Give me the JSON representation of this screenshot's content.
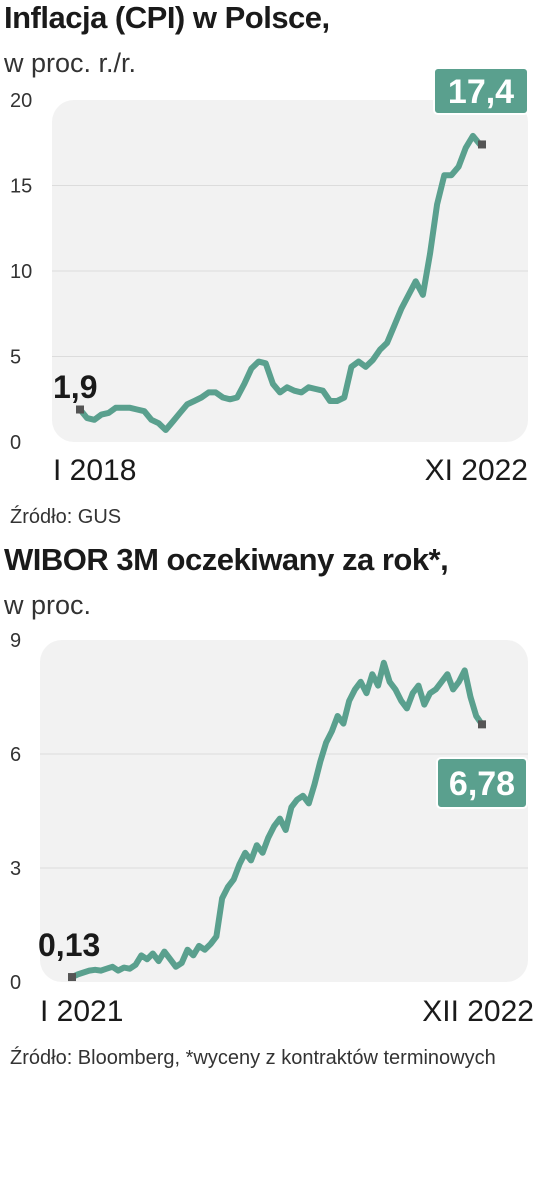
{
  "chart_data": [
    {
      "type": "line",
      "title": "Inflacja (CPI) w Polsce,",
      "subtitle": "w proc. r./r.",
      "source": "Źródło: GUS",
      "x_start_label": "I 2018",
      "x_end_label": "XI 2022",
      "ylim": [
        0,
        20
      ],
      "yticks": [
        "0",
        "5",
        "10",
        "15",
        "20"
      ],
      "start_value_label": "1,9",
      "end_value_label": "17,4",
      "grid": true,
      "colors": {
        "line": "#5aa08e",
        "badge": "#5aa08e",
        "panel": "#f2f2f2",
        "marker": "#555555"
      },
      "series": [
        {
          "values": [
            1.9,
            1.4,
            1.3,
            1.6,
            1.7,
            2.0,
            2.0,
            2.0,
            1.9,
            1.8,
            1.3,
            1.1,
            0.7,
            1.2,
            1.7,
            2.2,
            2.4,
            2.6,
            2.9,
            2.9,
            2.6,
            2.5,
            2.6,
            3.4,
            4.3,
            4.7,
            4.6,
            3.4,
            2.9,
            3.2,
            3.0,
            2.9,
            3.2,
            3.1,
            3.0,
            2.4,
            2.4,
            2.6,
            4.4,
            4.7,
            4.4,
            4.8,
            5.4,
            5.8,
            6.8,
            7.8,
            8.6,
            9.4,
            8.6,
            11.0,
            13.9,
            15.6,
            15.6,
            16.1,
            17.2,
            17.9,
            17.4
          ]
        }
      ]
    },
    {
      "type": "line",
      "title": "WIBOR 3M oczekiwany za rok*,",
      "subtitle": "w proc.",
      "source": "Źródło: Bloomberg, *wyceny z kontraktów terminowych",
      "x_start_label": "I 2021",
      "x_end_label": "XII 2022",
      "ylim": [
        0,
        9
      ],
      "yticks": [
        "0",
        "3",
        "6",
        "9"
      ],
      "start_value_label": "0,13",
      "end_value_label": "6,78",
      "grid": true,
      "colors": {
        "line": "#5aa08e",
        "badge": "#5aa08e",
        "panel": "#f2f2f2",
        "marker": "#555555"
      },
      "series": [
        {
          "values": [
            0.13,
            0.2,
            0.25,
            0.3,
            0.32,
            0.3,
            0.35,
            0.4,
            0.3,
            0.38,
            0.35,
            0.45,
            0.7,
            0.6,
            0.75,
            0.55,
            0.8,
            0.6,
            0.4,
            0.5,
            0.85,
            0.7,
            0.95,
            0.85,
            1.0,
            1.2,
            2.2,
            2.5,
            2.7,
            3.1,
            3.4,
            3.2,
            3.6,
            3.4,
            3.8,
            4.1,
            4.3,
            4.0,
            4.6,
            4.8,
            4.9,
            4.7,
            5.2,
            5.8,
            6.3,
            6.6,
            7.0,
            6.8,
            7.4,
            7.7,
            7.9,
            7.6,
            8.1,
            7.8,
            8.4,
            7.9,
            7.7,
            7.4,
            7.2,
            7.6,
            7.8,
            7.3,
            7.6,
            7.7,
            7.9,
            8.1,
            7.7,
            7.9,
            8.2,
            7.5,
            7.0,
            6.78
          ]
        }
      ]
    }
  ]
}
